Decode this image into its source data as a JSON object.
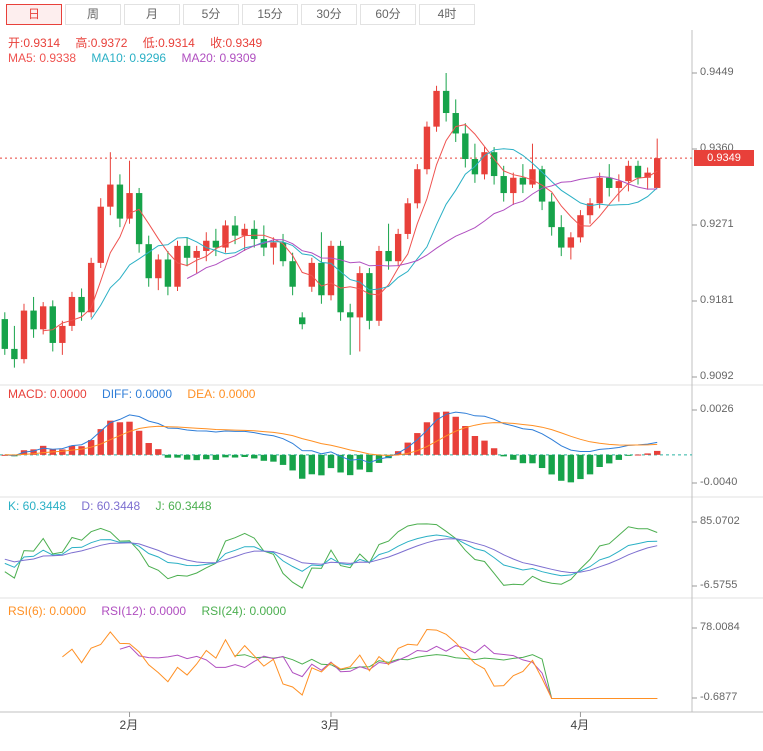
{
  "toolbar": {
    "tabs": [
      "日",
      "周",
      "月",
      "5分",
      "15分",
      "30分",
      "60分",
      "4时"
    ],
    "active_tab": "日"
  },
  "main": {
    "ohlc": {
      "open": "开:0.9314",
      "high": "高:0.9372",
      "low": "低:0.9314",
      "close": "收:0.9349"
    },
    "ma": {
      "ma5": "MA5: 0.9338",
      "ma10": "MA10: 0.9296",
      "ma20": "MA20: 0.9309"
    },
    "axis": [
      "0.9449",
      "0.9360",
      "0.9271",
      "0.9181",
      "0.9092"
    ],
    "price_badge": "0.9349"
  },
  "macd": {
    "legend": {
      "macd": "MACD: 0.0000",
      "diff": "DIFF: 0.0000",
      "dea": "DEA: 0.0000"
    },
    "axis": [
      "0.0026",
      "-0.0040"
    ]
  },
  "kdj": {
    "legend": {
      "k": "K: 60.3448",
      "d": "D: 60.3448",
      "j": "J: 60.3448"
    },
    "axis": [
      "85.0702",
      "-6.5755"
    ]
  },
  "rsi": {
    "legend": {
      "r6": "RSI(6): 0.0000",
      "r12": "RSI(12): 0.0000",
      "r24": "RSI(24): 0.0000"
    },
    "axis": [
      "78.0084",
      "-0.6877"
    ]
  },
  "colors": {
    "up": "#e8403a",
    "down": "#16a34a",
    "ma5": "#ef5350",
    "ma10": "#2ab0c5",
    "ma20": "#b04fc0",
    "diff": "#2f7ed8",
    "dea": "#ff9024",
    "zero_line": "#2bb3a3",
    "k": "#2ab0c5",
    "d": "#7d6fd0",
    "j": "#4caf50",
    "r6": "#ff9024",
    "r12": "#b04fc0",
    "r24": "#4caf50"
  },
  "chart_data": {
    "type": "candlestick",
    "panels": [
      "price+MA(5,10,20)",
      "MACD(12,26,9)",
      "KDJ(9,3,3)",
      "RSI(6,12,24)"
    ],
    "x_labels": [
      {
        "label": "2月",
        "index": 13
      },
      {
        "label": "3月",
        "index": 34
      },
      {
        "label": "4月",
        "index": 60
      }
    ],
    "y_axis": {
      "main": [
        0.9449,
        0.936,
        0.9271,
        0.9181,
        0.9092
      ],
      "macd": [
        0.0026,
        -0.004
      ],
      "kdj": [
        85.0702,
        -6.5755
      ],
      "rsi": [
        78.0084,
        -0.6877
      ]
    },
    "current_price": 0.9349,
    "last_ohlc": {
      "open": 0.9314,
      "high": 0.9372,
      "low": 0.9314,
      "close": 0.9349
    },
    "indicators": {
      "ma": [
        5,
        10,
        20
      ],
      "macd": [
        12,
        26,
        9
      ],
      "kdj": [
        9,
        3,
        3
      ],
      "rsi": [
        6,
        12,
        24
      ]
    },
    "rsi_zero_from_index": 57,
    "candles": [
      [
        0.916,
        0.9168,
        0.9118,
        0.9125
      ],
      [
        0.9125,
        0.9152,
        0.9103,
        0.9113
      ],
      [
        0.9113,
        0.9178,
        0.9108,
        0.917
      ],
      [
        0.917,
        0.9186,
        0.9138,
        0.9148
      ],
      [
        0.9148,
        0.918,
        0.9142,
        0.9175
      ],
      [
        0.9175,
        0.9182,
        0.9122,
        0.9132
      ],
      [
        0.9132,
        0.9158,
        0.9118,
        0.9152
      ],
      [
        0.9152,
        0.9192,
        0.9146,
        0.9186
      ],
      [
        0.9186,
        0.9196,
        0.9158,
        0.9168
      ],
      [
        0.9168,
        0.9232,
        0.9162,
        0.9226
      ],
      [
        0.9226,
        0.9302,
        0.922,
        0.9292
      ],
      [
        0.9292,
        0.9356,
        0.9282,
        0.9318
      ],
      [
        0.9318,
        0.933,
        0.9268,
        0.9278
      ],
      [
        0.9278,
        0.9346,
        0.9272,
        0.9308
      ],
      [
        0.9308,
        0.9314,
        0.9238,
        0.9248
      ],
      [
        0.9248,
        0.9258,
        0.9198,
        0.9208
      ],
      [
        0.9208,
        0.9236,
        0.9194,
        0.923
      ],
      [
        0.923,
        0.924,
        0.9188,
        0.9198
      ],
      [
        0.9198,
        0.9252,
        0.9193,
        0.9246
      ],
      [
        0.9246,
        0.9256,
        0.9222,
        0.9232
      ],
      [
        0.9232,
        0.9246,
        0.9214,
        0.924
      ],
      [
        0.924,
        0.9262,
        0.9228,
        0.9252
      ],
      [
        0.9252,
        0.9266,
        0.9234,
        0.9244
      ],
      [
        0.9244,
        0.9276,
        0.9238,
        0.927
      ],
      [
        0.927,
        0.9281,
        0.9248,
        0.9258
      ],
      [
        0.9258,
        0.9272,
        0.924,
        0.9266
      ],
      [
        0.9266,
        0.9276,
        0.9244,
        0.9254
      ],
      [
        0.9254,
        0.927,
        0.9234,
        0.9244
      ],
      [
        0.9244,
        0.9256,
        0.9224,
        0.925
      ],
      [
        0.925,
        0.926,
        0.9222,
        0.9228
      ],
      [
        0.9228,
        0.9238,
        0.9188,
        0.9198
      ],
      [
        0.9162,
        0.9168,
        0.9148,
        0.9154
      ],
      [
        0.9198,
        0.9232,
        0.9192,
        0.9226
      ],
      [
        0.9226,
        0.9262,
        0.9178,
        0.9188
      ],
      [
        0.9188,
        0.9252,
        0.9182,
        0.9246
      ],
      [
        0.9246,
        0.9252,
        0.9158,
        0.9168
      ],
      [
        0.9168,
        0.9178,
        0.9118,
        0.9162
      ],
      [
        0.9162,
        0.9222,
        0.9122,
        0.9214
      ],
      [
        0.9214,
        0.922,
        0.9148,
        0.9158
      ],
      [
        0.9158,
        0.9246,
        0.9152,
        0.924
      ],
      [
        0.924,
        0.9272,
        0.9218,
        0.9228
      ],
      [
        0.9228,
        0.9266,
        0.9222,
        0.926
      ],
      [
        0.926,
        0.9302,
        0.9254,
        0.9296
      ],
      [
        0.9296,
        0.9342,
        0.929,
        0.9336
      ],
      [
        0.9336,
        0.9392,
        0.933,
        0.9386
      ],
      [
        0.9386,
        0.9434,
        0.938,
        0.9428
      ],
      [
        0.9428,
        0.9449,
        0.9392,
        0.9402
      ],
      [
        0.9402,
        0.9418,
        0.9368,
        0.9378
      ],
      [
        0.9378,
        0.939,
        0.9338,
        0.9348
      ],
      [
        0.9348,
        0.9366,
        0.932,
        0.933
      ],
      [
        0.933,
        0.9362,
        0.9324,
        0.9356
      ],
      [
        0.9356,
        0.9362,
        0.9318,
        0.9328
      ],
      [
        0.9328,
        0.934,
        0.9298,
        0.9308
      ],
      [
        0.9308,
        0.9332,
        0.9294,
        0.9326
      ],
      [
        0.9326,
        0.9342,
        0.9308,
        0.9318
      ],
      [
        0.9318,
        0.9366,
        0.9314,
        0.9336
      ],
      [
        0.9336,
        0.934,
        0.9288,
        0.9298
      ],
      [
        0.9298,
        0.9308,
        0.9258,
        0.9268
      ],
      [
        0.9268,
        0.9282,
        0.9234,
        0.9244
      ],
      [
        0.9244,
        0.9262,
        0.923,
        0.9256
      ],
      [
        0.9256,
        0.9288,
        0.925,
        0.9282
      ],
      [
        0.9282,
        0.9302,
        0.9272,
        0.9296
      ],
      [
        0.9296,
        0.9332,
        0.929,
        0.9326
      ],
      [
        0.9326,
        0.9342,
        0.9304,
        0.9314
      ],
      [
        0.9314,
        0.933,
        0.9298,
        0.9322
      ],
      [
        0.9322,
        0.9346,
        0.931,
        0.934
      ],
      [
        0.934,
        0.9346,
        0.9318,
        0.9326
      ],
      [
        0.9326,
        0.9338,
        0.9312,
        0.9332
      ],
      [
        0.9314,
        0.9372,
        0.9314,
        0.9349
      ]
    ]
  }
}
